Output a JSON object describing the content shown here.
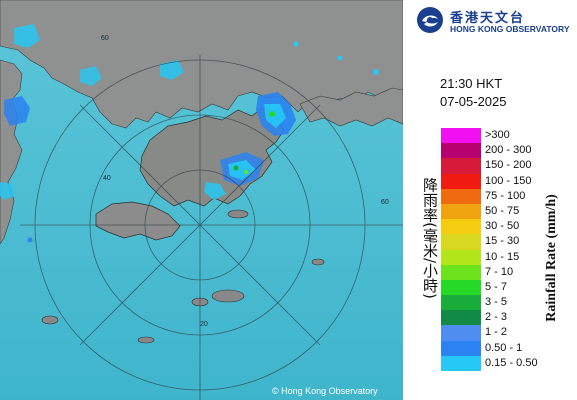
{
  "header": {
    "org_name_cn": "香港天文台",
    "org_name_en": "HONG KONG OBSERVATORY"
  },
  "timestamp": {
    "time": "21:30 HKT",
    "date": "07-05-2025"
  },
  "legend": {
    "title_cn": "降雨率(毫米/小時)",
    "title_en": "Rainfall Rate (mm/h)",
    "items": [
      {
        "label": ">300",
        "color": "#f20ff2"
      },
      {
        "label": "200 - 300",
        "color": "#b8006e"
      },
      {
        "label": "150 - 200",
        "color": "#d61a3a"
      },
      {
        "label": "100 - 150",
        "color": "#f01a10"
      },
      {
        "label": "75 - 100",
        "color": "#f06a10"
      },
      {
        "label": "50 - 75",
        "color": "#f0a510"
      },
      {
        "label": "30 - 50",
        "color": "#f5cc10"
      },
      {
        "label": "15 - 30",
        "color": "#d8d820"
      },
      {
        "label": "10 - 15",
        "color": "#b2e51a"
      },
      {
        "label": "7 - 10",
        "color": "#6ee21a"
      },
      {
        "label": "5 - 7",
        "color": "#27d927"
      },
      {
        "label": "3 - 5",
        "color": "#18ad3a"
      },
      {
        "label": "2 - 3",
        "color": "#118a46"
      },
      {
        "label": "1 - 2",
        "color": "#4f8ef0"
      },
      {
        "label": "0.50 - 1",
        "color": "#2a83f0"
      },
      {
        "label": "0.15 - 0.50",
        "color": "#26c8f5"
      }
    ]
  },
  "map": {
    "copyright": "© Hong Kong Observatory",
    "range_ring_labels": [
      "60",
      "40",
      "20",
      "60"
    ],
    "sea_color": "#52c1d6",
    "land_color": "#9a9a9a"
  }
}
